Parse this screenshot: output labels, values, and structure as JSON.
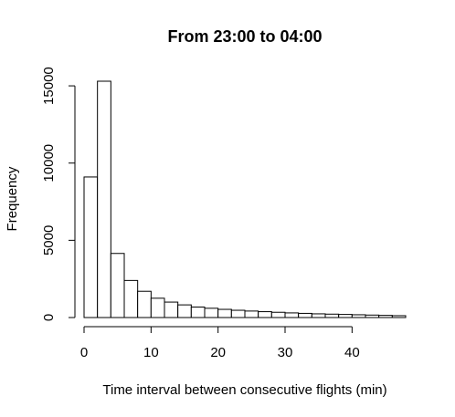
{
  "chart_data": {
    "type": "bar",
    "subtype": "histogram",
    "title": "From 23:00 to 04:00",
    "xlabel": "Time interval between consecutive flights (min)",
    "ylabel": "Frequency",
    "bin_width": 2,
    "bins": [
      {
        "start": 0,
        "end": 2,
        "count": 9100
      },
      {
        "start": 2,
        "end": 4,
        "count": 15300
      },
      {
        "start": 4,
        "end": 6,
        "count": 4150
      },
      {
        "start": 6,
        "end": 8,
        "count": 2400
      },
      {
        "start": 8,
        "end": 10,
        "count": 1700
      },
      {
        "start": 10,
        "end": 12,
        "count": 1250
      },
      {
        "start": 12,
        "end": 14,
        "count": 1000
      },
      {
        "start": 14,
        "end": 16,
        "count": 820
      },
      {
        "start": 16,
        "end": 18,
        "count": 680
      },
      {
        "start": 18,
        "end": 20,
        "count": 600
      },
      {
        "start": 20,
        "end": 22,
        "count": 530
      },
      {
        "start": 22,
        "end": 24,
        "count": 470
      },
      {
        "start": 24,
        "end": 26,
        "count": 420
      },
      {
        "start": 26,
        "end": 28,
        "count": 380
      },
      {
        "start": 28,
        "end": 30,
        "count": 340
      },
      {
        "start": 30,
        "end": 32,
        "count": 300
      },
      {
        "start": 32,
        "end": 34,
        "count": 270
      },
      {
        "start": 34,
        "end": 36,
        "count": 240
      },
      {
        "start": 36,
        "end": 38,
        "count": 220
      },
      {
        "start": 38,
        "end": 40,
        "count": 200
      },
      {
        "start": 40,
        "end": 42,
        "count": 180
      },
      {
        "start": 42,
        "end": 44,
        "count": 160
      },
      {
        "start": 44,
        "end": 46,
        "count": 140
      },
      {
        "start": 46,
        "end": 48,
        "count": 120
      }
    ],
    "x_ticks": [
      0,
      10,
      20,
      30,
      40
    ],
    "y_ticks": [
      0,
      5000,
      10000,
      15000
    ],
    "xlim": [
      0,
      48
    ],
    "ylim": [
      0,
      15300
    ],
    "grid": false,
    "colors": {
      "bar_fill": "#ffffff",
      "bar_stroke": "#000000",
      "text": "#000000"
    }
  }
}
